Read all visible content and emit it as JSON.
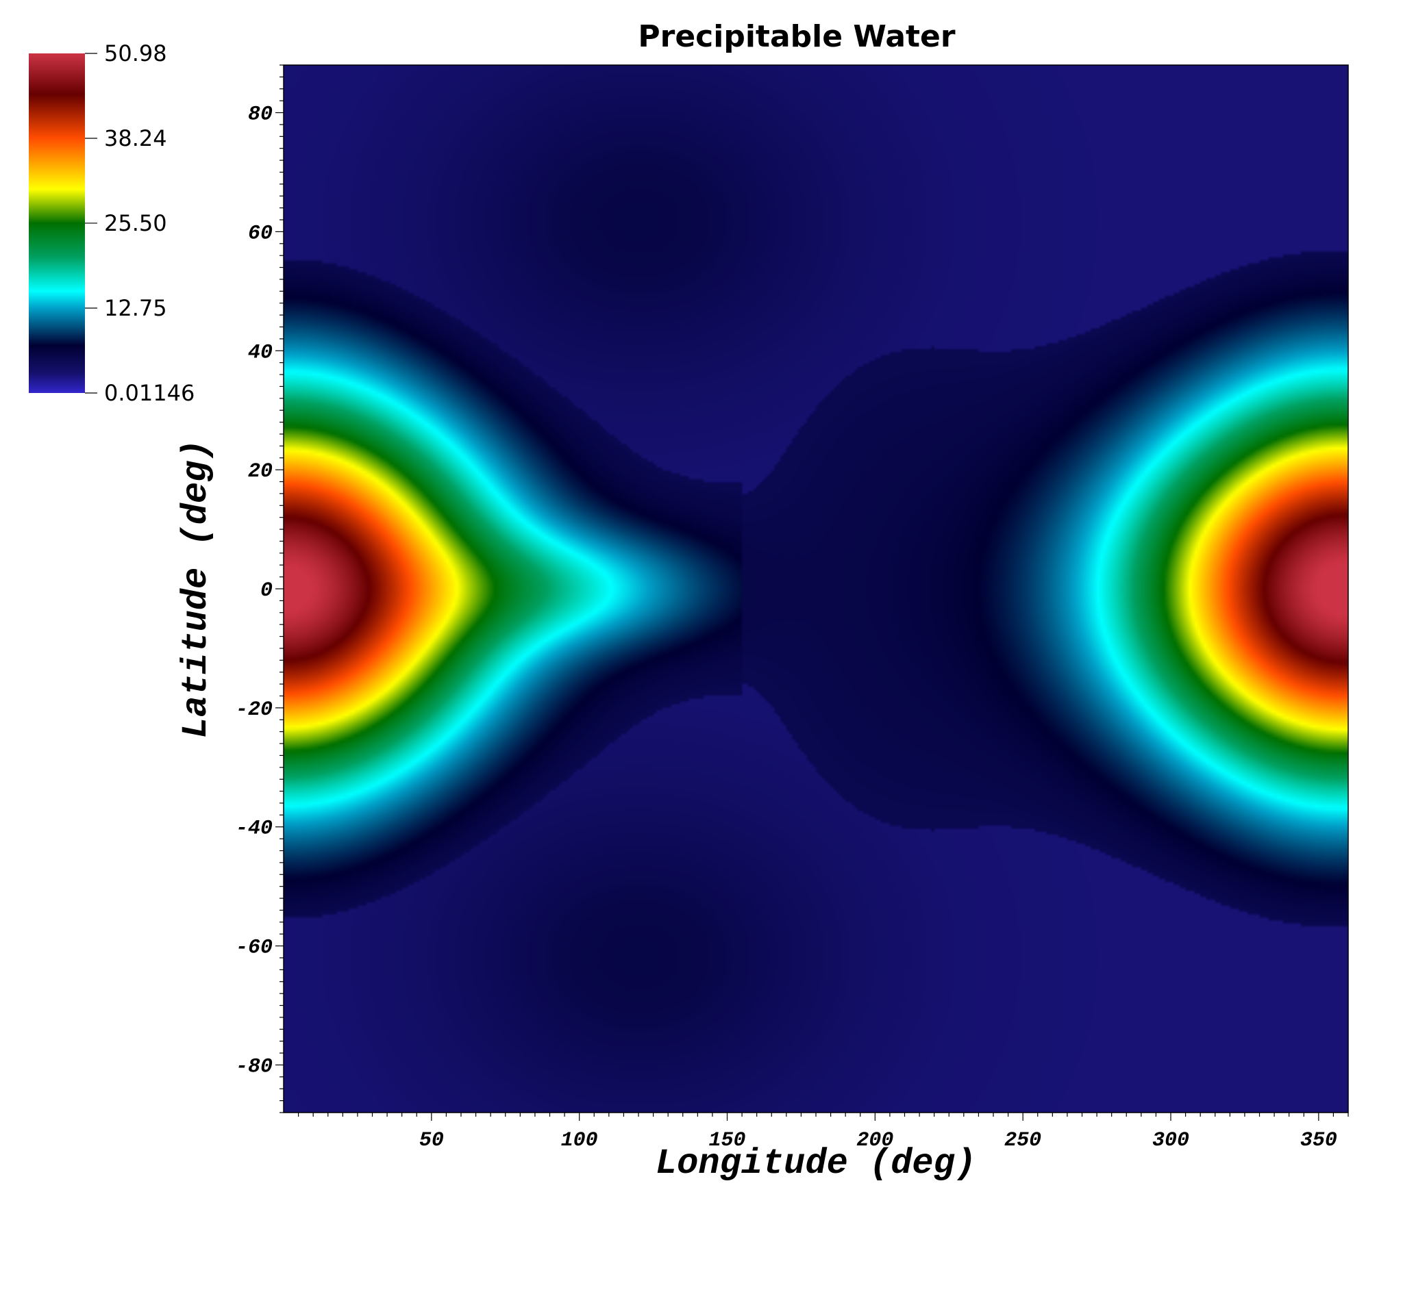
{
  "chart_data": {
    "type": "heatmap",
    "title": "Precipitable Water",
    "xlabel": "Longitude (deg)",
    "ylabel": "Latitude (deg)",
    "xlim": [
      0,
      360
    ],
    "ylim": [
      -88,
      88
    ],
    "x_ticks": [
      "50",
      "100",
      "150",
      "200",
      "250",
      "300",
      "350"
    ],
    "x_tick_values": [
      50,
      100,
      150,
      200,
      250,
      300,
      350
    ],
    "y_ticks": [
      "80",
      "60",
      "40",
      "20",
      "0",
      "-20",
      "-40",
      "-60",
      "-80"
    ],
    "y_tick_values": [
      80,
      60,
      40,
      20,
      0,
      -20,
      -40,
      -60,
      -80
    ],
    "colorbar": {
      "min": 0.01146,
      "max": 50.98,
      "labels": [
        "50.98",
        "38.24",
        "25.50",
        "12.75",
        "0.01146"
      ],
      "label_values": [
        50.98,
        38.24,
        25.5,
        12.75,
        0.01146
      ],
      "colors": [
        "#3326cc",
        "#0a0a4d",
        "#000033",
        "#00ffff",
        "#00804d",
        "#ffff00",
        "#ff4d00",
        "#660000",
        "#cc3344"
      ]
    },
    "features": [
      {
        "region": "west-edge maximum",
        "lon": 0,
        "lat": 0,
        "value": 50.98
      },
      {
        "region": "east-edge maximum",
        "lon": 360,
        "lat": 0,
        "value": 47
      },
      {
        "region": "equatorial tongue",
        "lon_range": [
          60,
          150
        ],
        "lat": 0,
        "value": 11
      },
      {
        "region": "polar minima",
        "lon": 120,
        "lat_abs": 70,
        "value": 0.01146
      }
    ]
  }
}
